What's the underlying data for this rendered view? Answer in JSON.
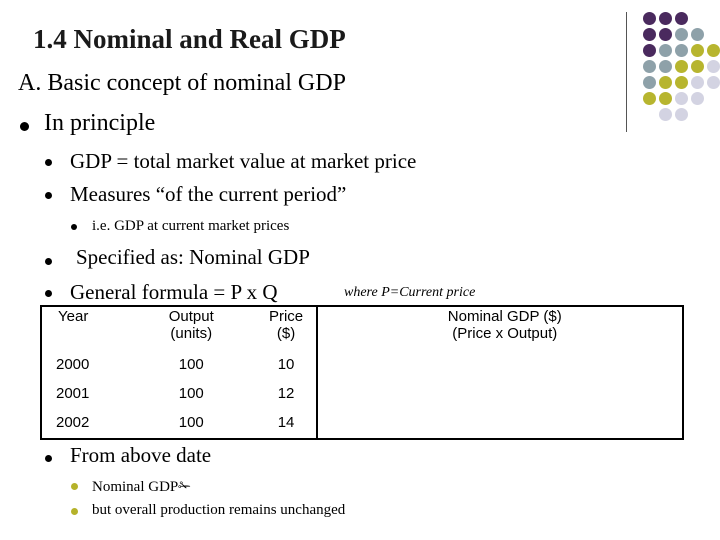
{
  "title": "1.4 Nominal and Real GDP",
  "heading_a": "A. Basic concept of nominal GDP",
  "in_principle": "In principle",
  "bullets": [
    "GDP = total market value at market price",
    "Measures “of the current period”"
  ],
  "sub_bullet": "i.e. GDP at current market prices",
  "specified": "Specified as: Nominal GDP",
  "formula": "General formula = P x Q",
  "formula_note": "where P=Current price",
  "table": {
    "headers": [
      "Year",
      "Output (units)",
      "Price ($)",
      "Nominal GDP ($) (Price x Output)"
    ],
    "header_lines": {
      "output": [
        "Output",
        "(units)"
      ],
      "price": [
        "Price",
        "($)"
      ],
      "nominal": [
        "Nominal GDP ($)",
        "(Price x Output)"
      ]
    },
    "rows": [
      {
        "year": "2000",
        "output": "100",
        "price": "10",
        "nominal": ""
      },
      {
        "year": "2001",
        "output": "100",
        "price": "12",
        "nominal": ""
      },
      {
        "year": "2002",
        "output": "100",
        "price": "14",
        "nominal": ""
      }
    ]
  },
  "from_above": "From above date",
  "bottom_bullets": [
    "Nominal GDP",
    "but overall production remains unchanged"
  ],
  "symbol": "✁",
  "colors": {
    "purple": "#4a2a5e",
    "teal": "#8ea1a9",
    "olive": "#b7b52f",
    "lavender": "#d3d3e2",
    "bullet_yellow": "#b5b22a"
  }
}
